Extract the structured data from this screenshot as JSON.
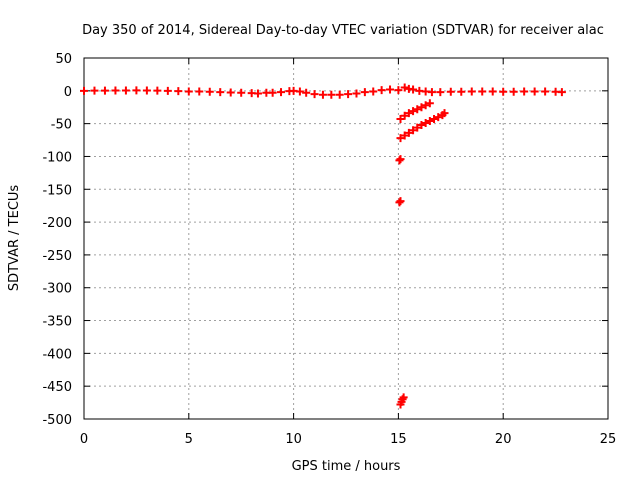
{
  "chart_data": {
    "type": "scatter",
    "title": "Day 350 of 2014, Sidereal Day-to-day VTEC variation (SDTVAR) for receiver alac",
    "xlabel": "GPS time / hours",
    "ylabel": "SDTVAR / TECUs",
    "xlim": [
      0,
      25
    ],
    "ylim": [
      -500,
      50
    ],
    "xticks": [
      0,
      5,
      10,
      15,
      20,
      25
    ],
    "yticks": [
      50,
      0,
      -50,
      -100,
      -150,
      -200,
      -250,
      -300,
      -350,
      -400,
      -450,
      -500
    ],
    "grid": true,
    "marker": "plus",
    "color": "#ff0000",
    "series": [
      {
        "values": [
          {
            "x": 0.0,
            "y": 0.0
          },
          {
            "x": 0.5,
            "y": 0.2
          },
          {
            "x": 1.0,
            "y": 0.3
          },
          {
            "x": 1.5,
            "y": 0.4
          },
          {
            "x": 2.0,
            "y": 0.5
          },
          {
            "x": 2.5,
            "y": 0.6
          },
          {
            "x": 3.0,
            "y": 0.5
          },
          {
            "x": 3.5,
            "y": 0.2
          },
          {
            "x": 4.0,
            "y": 0.0
          },
          {
            "x": 4.5,
            "y": -0.5
          },
          {
            "x": 5.0,
            "y": -1.0
          },
          {
            "x": 5.5,
            "y": -1.0
          },
          {
            "x": 6.0,
            "y": -1.5
          },
          {
            "x": 6.5,
            "y": -2.0
          },
          {
            "x": 7.0,
            "y": -2.5
          },
          {
            "x": 7.5,
            "y": -3.0
          },
          {
            "x": 8.0,
            "y": -3.5
          },
          {
            "x": 8.3,
            "y": -4.0
          },
          {
            "x": 8.7,
            "y": -3.0
          },
          {
            "x": 9.0,
            "y": -3.0
          },
          {
            "x": 9.4,
            "y": -2.0
          },
          {
            "x": 9.8,
            "y": -0.5
          },
          {
            "x": 10.0,
            "y": 0.0
          },
          {
            "x": 10.3,
            "y": -1.0
          },
          {
            "x": 10.6,
            "y": -3.0
          },
          {
            "x": 11.0,
            "y": -5.0
          },
          {
            "x": 11.4,
            "y": -6.0
          },
          {
            "x": 11.8,
            "y": -6.0
          },
          {
            "x": 12.2,
            "y": -6.0
          },
          {
            "x": 12.6,
            "y": -5.0
          },
          {
            "x": 13.0,
            "y": -4.0
          },
          {
            "x": 13.4,
            "y": -2.0
          },
          {
            "x": 13.8,
            "y": -1.0
          },
          {
            "x": 14.2,
            "y": 1.0
          },
          {
            "x": 14.6,
            "y": 2.0
          },
          {
            "x": 15.0,
            "y": 1.0
          },
          {
            "x": 15.3,
            "y": 5.0
          },
          {
            "x": 15.5,
            "y": 3.0
          },
          {
            "x": 15.7,
            "y": 2.0
          },
          {
            "x": 16.0,
            "y": 0.0
          },
          {
            "x": 16.3,
            "y": -1.0
          },
          {
            "x": 16.6,
            "y": -2.0
          },
          {
            "x": 17.0,
            "y": -2.0
          },
          {
            "x": 17.5,
            "y": -1.5
          },
          {
            "x": 18.0,
            "y": -1.5
          },
          {
            "x": 18.5,
            "y": -1.0
          },
          {
            "x": 19.0,
            "y": -1.0
          },
          {
            "x": 19.5,
            "y": -1.0
          },
          {
            "x": 20.0,
            "y": -1.5
          },
          {
            "x": 20.5,
            "y": -1.5
          },
          {
            "x": 21.0,
            "y": -1.0
          },
          {
            "x": 21.5,
            "y": -1.0
          },
          {
            "x": 22.0,
            "y": -1.0
          },
          {
            "x": 22.5,
            "y": -1.5
          },
          {
            "x": 22.8,
            "y": -2.0
          },
          {
            "x": 15.1,
            "y": -43
          },
          {
            "x": 15.3,
            "y": -38
          },
          {
            "x": 15.5,
            "y": -34
          },
          {
            "x": 15.7,
            "y": -31
          },
          {
            "x": 15.9,
            "y": -28
          },
          {
            "x": 16.1,
            "y": -25
          },
          {
            "x": 16.3,
            "y": -22
          },
          {
            "x": 16.5,
            "y": -19
          },
          {
            "x": 15.1,
            "y": -72
          },
          {
            "x": 15.3,
            "y": -68
          },
          {
            "x": 15.5,
            "y": -64
          },
          {
            "x": 15.7,
            "y": -60
          },
          {
            "x": 15.9,
            "y": -56
          },
          {
            "x": 16.1,
            "y": -52
          },
          {
            "x": 16.3,
            "y": -49
          },
          {
            "x": 16.5,
            "y": -46
          },
          {
            "x": 16.7,
            "y": -43
          },
          {
            "x": 16.9,
            "y": -40
          },
          {
            "x": 17.1,
            "y": -37
          },
          {
            "x": 17.2,
            "y": -34
          },
          {
            "x": 15.1,
            "y": -104
          },
          {
            "x": 15.05,
            "y": -106
          },
          {
            "x": 15.1,
            "y": -168
          },
          {
            "x": 15.05,
            "y": -170
          },
          {
            "x": 15.1,
            "y": -478
          },
          {
            "x": 15.15,
            "y": -474
          },
          {
            "x": 15.2,
            "y": -470
          },
          {
            "x": 15.25,
            "y": -467
          }
        ]
      }
    ]
  }
}
